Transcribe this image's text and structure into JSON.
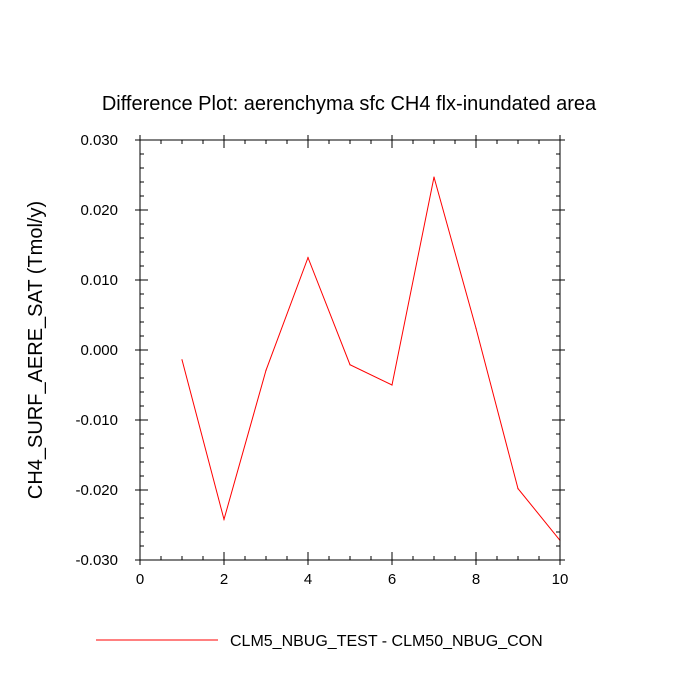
{
  "chart_data": {
    "type": "line",
    "title": "Difference Plot: aerenchyma sfc CH4 flx-inundated area",
    "xlabel": "",
    "ylabel": "CH4_SURF_AERE_SAT  (Tmol/y)",
    "xlim": [
      0,
      10
    ],
    "ylim": [
      -0.03,
      0.03
    ],
    "xticks": [
      0,
      2,
      4,
      6,
      8,
      10
    ],
    "xtick_labels": [
      "0",
      "2",
      "4",
      "6",
      "8",
      "10"
    ],
    "yticks": [
      -0.03,
      -0.02,
      -0.01,
      0.0,
      0.01,
      0.02,
      0.03
    ],
    "ytick_labels": [
      "-0.030",
      "-0.020",
      "-0.010",
      "0.000",
      "0.010",
      "0.020",
      "0.030"
    ],
    "grid": false,
    "legend_position": "bottom",
    "series": [
      {
        "name": "CLM5_NBUG_TEST - CLM50_NBUG_CON",
        "color": "#ff0000",
        "x": [
          1,
          2,
          3,
          4,
          5,
          6,
          7,
          8,
          9,
          10
        ],
        "y": [
          -0.0014,
          -0.0242,
          -0.0029,
          0.0132,
          -0.0021,
          -0.005,
          0.0247,
          0.0031,
          -0.0198,
          -0.0272
        ]
      }
    ]
  }
}
